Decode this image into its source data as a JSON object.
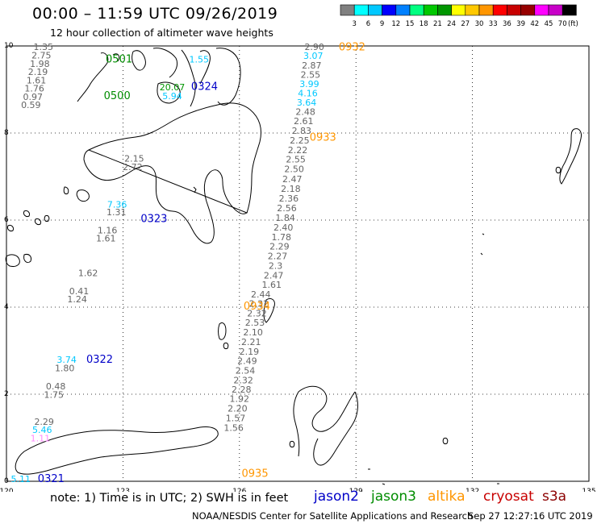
{
  "header": {
    "title": "00:00 – 11:59 UTC 09/26/2019",
    "subtitle": "12 hour collection of altimeter wave heights"
  },
  "legend": {
    "unit": "(ft)",
    "bins": [
      {
        "label": "",
        "color": "#808080"
      },
      {
        "label": "3",
        "color": "#00ffff"
      },
      {
        "label": "6",
        "color": "#00c8ff"
      },
      {
        "label": "9",
        "color": "#0000ff"
      },
      {
        "label": "12",
        "color": "#0080ff"
      },
      {
        "label": "15",
        "color": "#00ff80"
      },
      {
        "label": "18",
        "color": "#00c800"
      },
      {
        "label": "21",
        "color": "#009600"
      },
      {
        "label": "24",
        "color": "#ffff00"
      },
      {
        "label": "27",
        "color": "#ffc800"
      },
      {
        "label": "30",
        "color": "#ff9600"
      },
      {
        "label": "33",
        "color": "#ff0000"
      },
      {
        "label": "36",
        "color": "#c80000"
      },
      {
        "label": "39",
        "color": "#960000"
      },
      {
        "label": "42",
        "color": "#ff00ff"
      },
      {
        "label": "45",
        "color": "#c800c8"
      },
      {
        "label": "70",
        "color": "#000000"
      }
    ]
  },
  "map": {
    "lon_ticks": [
      "120",
      "123",
      "126",
      "129",
      "132",
      "135"
    ],
    "lat_ticks": [
      "0",
      "2",
      "4",
      "6",
      "8",
      "10"
    ],
    "lon_range": [
      120,
      135
    ],
    "lat_range": [
      0,
      10
    ],
    "grid": "dotted"
  },
  "satellites": {
    "jason2": {
      "name": "jason2",
      "color": "#0000c8"
    },
    "jason3": {
      "name": "jason3",
      "color": "#008c00"
    },
    "altika": {
      "name": "altika",
      "color": "#ff9600"
    },
    "cryosat": {
      "name": "cryosat",
      "color": "#c80000"
    },
    "s3a": {
      "name": "s3a",
      "color": "#8c0000"
    }
  },
  "pass_labels": [
    {
      "text": "0501",
      "lon": 122.9,
      "lat": 9.62,
      "sat": "jason3"
    },
    {
      "text": "0500",
      "lon": 122.85,
      "lat": 8.78,
      "sat": "jason3"
    },
    {
      "text": "0324",
      "lon": 125.1,
      "lat": 8.99,
      "sat": "jason2"
    },
    {
      "text": "0932",
      "lon": 128.9,
      "lat": 9.9,
      "sat": "altika"
    },
    {
      "text": "0933",
      "lon": 128.15,
      "lat": 7.82,
      "sat": "altika"
    },
    {
      "text": "0323",
      "lon": 123.8,
      "lat": 5.95,
      "sat": "jason2"
    },
    {
      "text": "0934",
      "lon": 126.45,
      "lat": 3.94,
      "sat": "altika"
    },
    {
      "text": "0322",
      "lon": 122.4,
      "lat": 2.72,
      "sat": "jason2"
    },
    {
      "text": "0935",
      "lon": 126.4,
      "lat": 0.1,
      "sat": "altika"
    },
    {
      "text": "0321",
      "lon": 121.15,
      "lat": -0.02,
      "sat": "jason2"
    }
  ],
  "wave_heights": [
    {
      "text": "1.35",
      "lon": 120.95,
      "lat": 9.91,
      "c": "grey"
    },
    {
      "text": "2.75",
      "lon": 120.9,
      "lat": 9.71,
      "c": "grey"
    },
    {
      "text": "1.98",
      "lon": 120.86,
      "lat": 9.52,
      "c": "grey"
    },
    {
      "text": "2.19",
      "lon": 120.81,
      "lat": 9.33,
      "c": "grey"
    },
    {
      "text": "1.61",
      "lon": 120.77,
      "lat": 9.14,
      "c": "grey"
    },
    {
      "text": "1.76",
      "lon": 120.72,
      "lat": 8.95,
      "c": "grey"
    },
    {
      "text": "0.97",
      "lon": 120.68,
      "lat": 8.76,
      "c": "grey"
    },
    {
      "text": "0.59",
      "lon": 120.63,
      "lat": 8.57,
      "c": "grey"
    },
    {
      "text": "1.55",
      "lon": 124.96,
      "lat": 9.62,
      "c": "cyan"
    },
    {
      "text": "20.07",
      "lon": 124.27,
      "lat": 8.98,
      "c": "green"
    },
    {
      "text": "5.94",
      "lon": 124.27,
      "lat": 8.78,
      "c": "cyan"
    },
    {
      "text": "2.90",
      "lon": 127.93,
      "lat": 9.91,
      "c": "grey"
    },
    {
      "text": "3.07",
      "lon": 127.9,
      "lat": 9.7,
      "c": "cyan"
    },
    {
      "text": "2.87",
      "lon": 127.86,
      "lat": 9.48,
      "c": "grey"
    },
    {
      "text": "2.55",
      "lon": 127.83,
      "lat": 9.27,
      "c": "grey"
    },
    {
      "text": "3.99",
      "lon": 127.8,
      "lat": 9.06,
      "c": "cyan"
    },
    {
      "text": "4.16",
      "lon": 127.76,
      "lat": 8.84,
      "c": "cyan"
    },
    {
      "text": "3.64",
      "lon": 127.73,
      "lat": 8.63,
      "c": "cyan"
    },
    {
      "text": "2.48",
      "lon": 127.7,
      "lat": 8.42,
      "c": "grey"
    },
    {
      "text": "2.61",
      "lon": 127.65,
      "lat": 8.2,
      "c": "grey"
    },
    {
      "text": "2.83",
      "lon": 127.6,
      "lat": 7.98,
      "c": "grey"
    },
    {
      "text": "2.25",
      "lon": 127.55,
      "lat": 7.76,
      "c": "grey"
    },
    {
      "text": "2.22",
      "lon": 127.5,
      "lat": 7.54,
      "c": "grey"
    },
    {
      "text": "2.55",
      "lon": 127.45,
      "lat": 7.32,
      "c": "grey"
    },
    {
      "text": "2.50",
      "lon": 127.41,
      "lat": 7.1,
      "c": "grey"
    },
    {
      "text": "2.47",
      "lon": 127.36,
      "lat": 6.87,
      "c": "grey"
    },
    {
      "text": "2.18",
      "lon": 127.32,
      "lat": 6.65,
      "c": "grey"
    },
    {
      "text": "2.36",
      "lon": 127.27,
      "lat": 6.43,
      "c": "grey"
    },
    {
      "text": "2.56",
      "lon": 127.22,
      "lat": 6.2,
      "c": "grey"
    },
    {
      "text": "1.84",
      "lon": 127.18,
      "lat": 5.98,
      "c": "grey"
    },
    {
      "text": "2.40",
      "lon": 127.13,
      "lat": 5.76,
      "c": "grey"
    },
    {
      "text": "1.78",
      "lon": 127.08,
      "lat": 5.54,
      "c": "grey"
    },
    {
      "text": "2.29",
      "lon": 127.03,
      "lat": 5.32,
      "c": "grey"
    },
    {
      "text": "2.27",
      "lon": 126.98,
      "lat": 5.1,
      "c": "grey"
    },
    {
      "text": "2.3",
      "lon": 126.93,
      "lat": 4.88,
      "c": "grey"
    },
    {
      "text": "2.47",
      "lon": 126.88,
      "lat": 4.66,
      "c": "grey"
    },
    {
      "text": "1.61",
      "lon": 126.83,
      "lat": 4.44,
      "c": "grey"
    },
    {
      "text": "2.44",
      "lon": 126.55,
      "lat": 4.22,
      "c": "grey"
    },
    {
      "text": "2.32",
      "lon": 126.5,
      "lat": 4.01,
      "c": "grey"
    },
    {
      "text": "2.32",
      "lon": 126.45,
      "lat": 3.79,
      "c": "grey"
    },
    {
      "text": "2.53",
      "lon": 126.4,
      "lat": 3.57,
      "c": "grey"
    },
    {
      "text": "2.10",
      "lon": 126.35,
      "lat": 3.35,
      "c": "grey"
    },
    {
      "text": "2.21",
      "lon": 126.3,
      "lat": 3.13,
      "c": "grey"
    },
    {
      "text": "2.19",
      "lon": 126.25,
      "lat": 2.91,
      "c": "grey"
    },
    {
      "text": "2.49",
      "lon": 126.2,
      "lat": 2.69,
      "c": "grey"
    },
    {
      "text": "2.54",
      "lon": 126.15,
      "lat": 2.47,
      "c": "grey"
    },
    {
      "text": "2.32",
      "lon": 126.1,
      "lat": 2.25,
      "c": "grey"
    },
    {
      "text": "2.28",
      "lon": 126.05,
      "lat": 2.04,
      "c": "grey"
    },
    {
      "text": "1.92",
      "lon": 126.0,
      "lat": 1.82,
      "c": "grey"
    },
    {
      "text": "2.20",
      "lon": 125.95,
      "lat": 1.6,
      "c": "grey"
    },
    {
      "text": "1.57",
      "lon": 125.9,
      "lat": 1.38,
      "c": "grey"
    },
    {
      "text": "1.56",
      "lon": 125.85,
      "lat": 1.16,
      "c": "grey"
    },
    {
      "text": "2.15",
      "lon": 123.29,
      "lat": 7.34,
      "c": "grey"
    },
    {
      "text": "2.72",
      "lon": 123.25,
      "lat": 7.15,
      "c": "grey"
    },
    {
      "text": "7.36",
      "lon": 122.85,
      "lat": 6.29,
      "c": "cyan"
    },
    {
      "text": "1.31",
      "lon": 122.83,
      "lat": 6.11,
      "c": "grey"
    },
    {
      "text": "1.16",
      "lon": 122.6,
      "lat": 5.69,
      "c": "grey"
    },
    {
      "text": "1.61",
      "lon": 122.56,
      "lat": 5.51,
      "c": "grey"
    },
    {
      "text": "1.62",
      "lon": 122.1,
      "lat": 4.71,
      "c": "grey"
    },
    {
      "text": "0.41",
      "lon": 121.87,
      "lat": 4.3,
      "c": "grey"
    },
    {
      "text": "1.24",
      "lon": 121.82,
      "lat": 4.11,
      "c": "grey"
    },
    {
      "text": "3.74",
      "lon": 121.55,
      "lat": 2.72,
      "c": "cyan"
    },
    {
      "text": "1.80",
      "lon": 121.5,
      "lat": 2.53,
      "c": "grey"
    },
    {
      "text": "0.48",
      "lon": 121.27,
      "lat": 2.11,
      "c": "grey"
    },
    {
      "text": "1.75",
      "lon": 121.22,
      "lat": 1.92,
      "c": "grey"
    },
    {
      "text": "2.29",
      "lon": 120.97,
      "lat": 1.3,
      "c": "grey"
    },
    {
      "text": "5.46",
      "lon": 120.92,
      "lat": 1.11,
      "c": "cyan"
    },
    {
      "text": "1.11",
      "lon": 120.87,
      "lat": 0.92,
      "c": "pink"
    },
    {
      "text": "5.11",
      "lon": 120.37,
      "lat": -0.02,
      "c": "cyan"
    }
  ],
  "footer": {
    "note": "note:  1) Time is in UTC;  2) SWH is in feet",
    "credit": "NOAA/NESDIS Center for Satellite Applications and Research",
    "timestamp": "Sep 27 12:27:16 UTC 2019"
  }
}
